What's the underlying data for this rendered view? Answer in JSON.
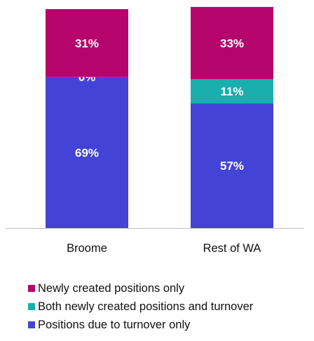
{
  "chart_data": {
    "type": "bar",
    "stacked": true,
    "percent": true,
    "categories": [
      "Broome",
      "Rest of WA"
    ],
    "series": [
      {
        "name": "Positions due to turnover only",
        "values": [
          69,
          57
        ],
        "labels": [
          "69%",
          "57%"
        ],
        "color": "#4343d6"
      },
      {
        "name": "Both newly created positions and turnover",
        "values": [
          0,
          11
        ],
        "labels": [
          "0%",
          "11%"
        ],
        "color": "#1aaeae"
      },
      {
        "name": "Newly created positions only",
        "values": [
          31,
          33
        ],
        "labels": [
          "31%",
          "33%"
        ],
        "color": "#b5056c"
      }
    ],
    "title": "",
    "xlabel": "",
    "ylabel": "",
    "ylim": [
      0,
      100
    ],
    "grid": false,
    "legend_position": "bottom"
  },
  "legend": {
    "items": [
      {
        "label": "Newly created positions only",
        "color": "#b5056c"
      },
      {
        "label": "Both newly created positions and turnover",
        "color": "#1aaeae"
      },
      {
        "label": "Positions due to turnover only",
        "color": "#4343d6"
      }
    ]
  }
}
